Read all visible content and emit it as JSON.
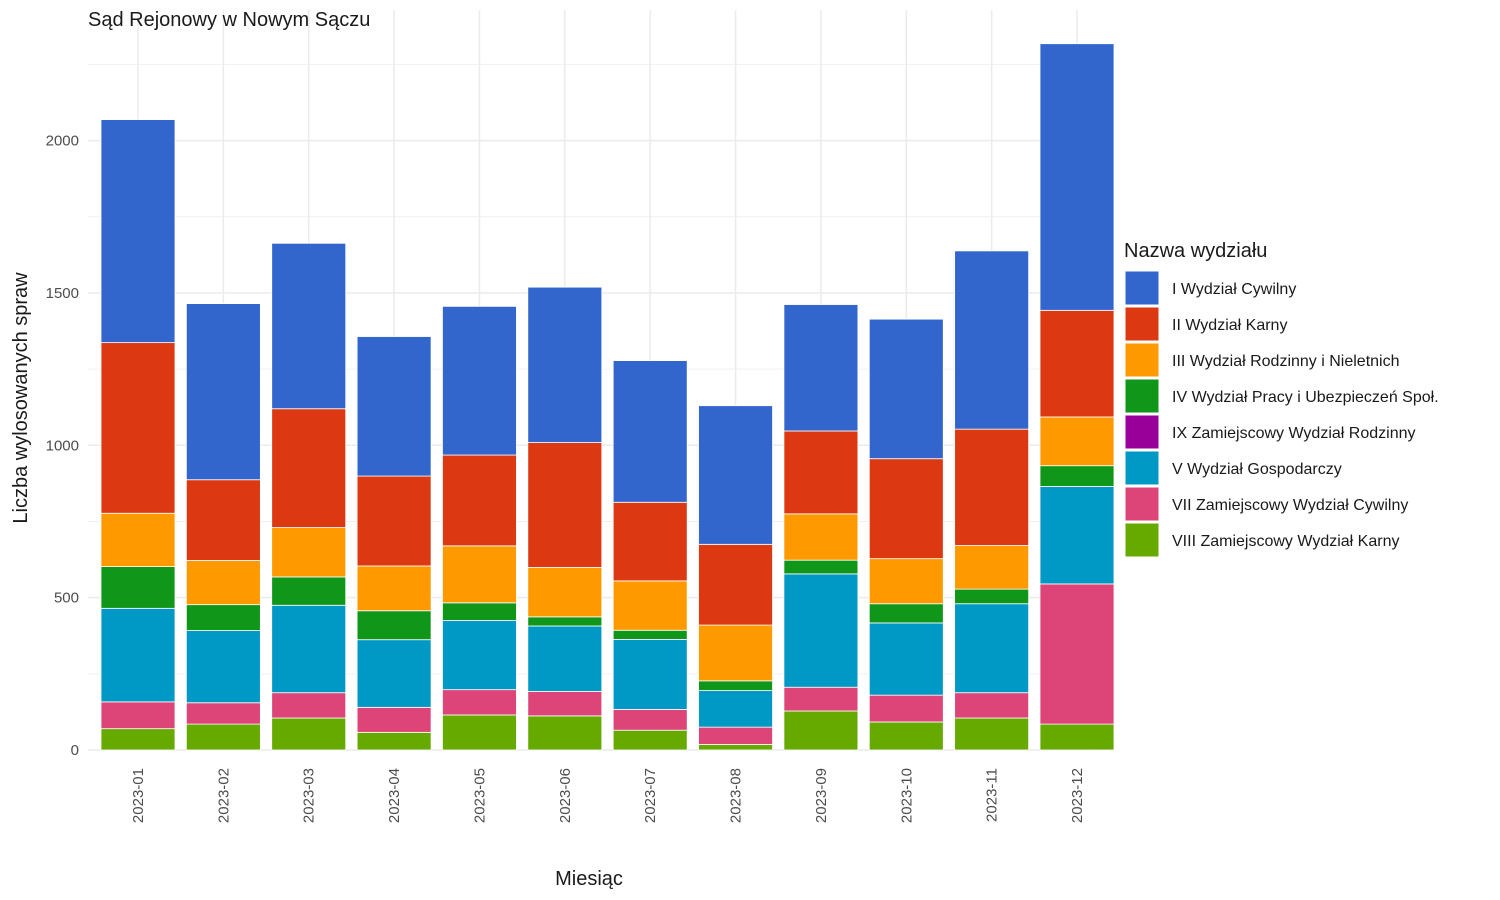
{
  "chart_data": {
    "type": "bar",
    "stacked": true,
    "title": "Sąd Rejonowy w Nowym Sączu",
    "xlabel": "Miesiąc",
    "ylabel": "Liczba wylosowanych spraw",
    "ylim": [
      0,
      2400
    ],
    "yticks": [
      0,
      500,
      1000,
      1500,
      2000
    ],
    "grid": true,
    "legend_title": "Nazwa wydziału",
    "legend_position": "right",
    "categories": [
      "2023-01",
      "2023-02",
      "2023-03",
      "2023-04",
      "2023-05",
      "2023-06",
      "2023-07",
      "2023-08",
      "2023-09",
      "2023-10",
      "2023-11",
      "2023-12"
    ],
    "series": [
      {
        "name": "VIII Zamiejscowy Wydział Karny",
        "color": "#66aa00",
        "values": [
          70,
          85,
          105,
          58,
          115,
          112,
          65,
          18,
          128,
          92,
          105,
          85
        ]
      },
      {
        "name": "VII Zamiejscowy Wydział Cywilny",
        "color": "#dd4477",
        "values": [
          88,
          70,
          83,
          82,
          83,
          80,
          68,
          57,
          78,
          88,
          83,
          460
        ]
      },
      {
        "name": "V Wydział Gospodarczy",
        "color": "#0099c6",
        "values": [
          307,
          237,
          287,
          222,
          227,
          215,
          230,
          120,
          372,
          237,
          292,
          320
        ]
      },
      {
        "name": "IX Zamiejscowy Wydział Rodzinny",
        "color": "#990099",
        "values": [
          0,
          0,
          0,
          0,
          0,
          0,
          0,
          0,
          0,
          0,
          0,
          0
        ]
      },
      {
        "name": "IV Wydział Pracy i Ubezpieczeń Społ.",
        "color": "#109618",
        "values": [
          137,
          85,
          93,
          95,
          58,
          30,
          30,
          32,
          45,
          63,
          48,
          68
        ]
      },
      {
        "name": "III Wydział Rodzinny i Nieletnich",
        "color": "#ff9900",
        "values": [
          175,
          145,
          162,
          147,
          187,
          162,
          162,
          183,
          152,
          148,
          143,
          160
        ]
      },
      {
        "name": "II Wydział Karny",
        "color": "#dc3912",
        "values": [
          560,
          265,
          390,
          295,
          298,
          410,
          258,
          265,
          272,
          328,
          382,
          350
        ]
      },
      {
        "name": "I Wydział Cywilny",
        "color": "#3366cc",
        "values": [
          732,
          578,
          543,
          458,
          488,
          510,
          465,
          455,
          415,
          458,
          585,
          875
        ]
      }
    ],
    "legend_order": [
      "I Wydział Cywilny",
      "II Wydział Karny",
      "III Wydział Rodzinny i Nieletnich",
      "IV Wydział Pracy i Ubezpieczeń Społ.",
      "IX Zamiejscowy Wydział Rodzinny",
      "V Wydział Gospodarczy",
      "VII Zamiejscowy Wydział Cywilny",
      "VIII Zamiejscowy Wydział Karny"
    ]
  }
}
